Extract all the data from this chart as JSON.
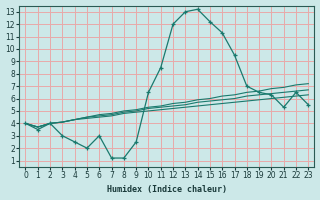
{
  "xlabel": "Humidex (Indice chaleur)",
  "ylabel": "",
  "xlim": [
    -0.5,
    23.5
  ],
  "ylim": [
    0.5,
    13.5
  ],
  "xticks": [
    0,
    1,
    2,
    3,
    4,
    5,
    6,
    7,
    8,
    9,
    10,
    11,
    12,
    13,
    14,
    15,
    16,
    17,
    18,
    19,
    20,
    21,
    22,
    23
  ],
  "yticks": [
    1,
    2,
    3,
    4,
    5,
    6,
    7,
    8,
    9,
    10,
    11,
    12,
    13
  ],
  "bg_color": "#cce8e8",
  "grid_color": "#e8aaaa",
  "line_color": "#1a7a6e",
  "series": [
    {
      "x": [
        0,
        1,
        2,
        3,
        4,
        5,
        6,
        7,
        8,
        9,
        10,
        11,
        12,
        13,
        14,
        15,
        16,
        17,
        18,
        19,
        20,
        21,
        22,
        23
      ],
      "y": [
        4.0,
        3.7,
        4.0,
        4.1,
        4.3,
        4.4,
        4.5,
        4.6,
        4.8,
        4.9,
        5.0,
        5.1,
        5.2,
        5.3,
        5.4,
        5.5,
        5.6,
        5.7,
        5.8,
        5.9,
        6.0,
        6.1,
        6.2,
        6.3
      ],
      "has_markers": false
    },
    {
      "x": [
        0,
        1,
        2,
        3,
        4,
        5,
        6,
        7,
        8,
        9,
        10,
        11,
        12,
        13,
        14,
        15,
        16,
        17,
        18,
        19,
        20,
        21,
        22,
        23
      ],
      "y": [
        4.0,
        3.7,
        4.0,
        4.1,
        4.3,
        4.5,
        4.6,
        4.7,
        4.9,
        5.0,
        5.2,
        5.3,
        5.4,
        5.5,
        5.7,
        5.8,
        5.9,
        6.0,
        6.2,
        6.3,
        6.4,
        6.5,
        6.6,
        6.7
      ],
      "has_markers": false
    },
    {
      "x": [
        0,
        1,
        2,
        3,
        4,
        5,
        6,
        7,
        8,
        9,
        10,
        11,
        12,
        13,
        14,
        15,
        16,
        17,
        18,
        19,
        20,
        21,
        22,
        23
      ],
      "y": [
        4.0,
        3.7,
        4.0,
        4.1,
        4.3,
        4.5,
        4.7,
        4.8,
        5.0,
        5.1,
        5.3,
        5.4,
        5.6,
        5.7,
        5.9,
        6.0,
        6.2,
        6.3,
        6.5,
        6.6,
        6.8,
        6.9,
        7.1,
        7.2
      ],
      "has_markers": false
    },
    {
      "x": [
        0,
        1,
        2,
        3,
        4,
        5,
        6,
        7,
        8,
        9,
        10,
        11,
        12,
        13,
        14,
        15,
        16,
        17,
        18,
        19,
        20,
        21,
        22,
        23
      ],
      "y": [
        4.0,
        3.5,
        4.0,
        3.0,
        2.5,
        2.0,
        3.0,
        1.2,
        1.2,
        2.5,
        6.5,
        8.5,
        12.0,
        13.0,
        13.2,
        12.2,
        11.3,
        9.5,
        7.0,
        6.5,
        6.3,
        5.3,
        6.5,
        5.5
      ],
      "has_markers": true
    }
  ]
}
